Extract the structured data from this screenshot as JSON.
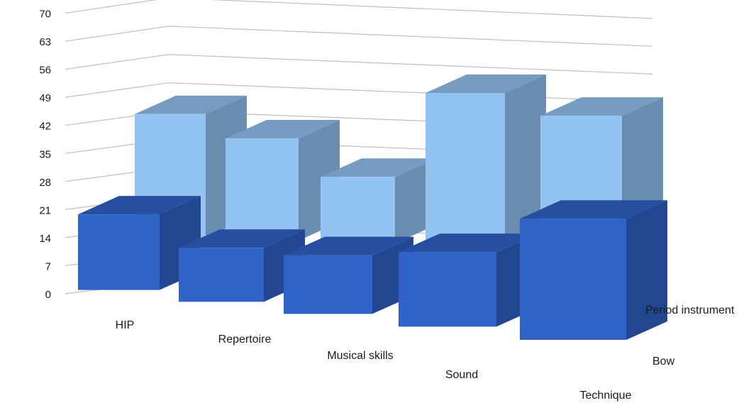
{
  "chart_data": {
    "type": "bar",
    "subtype": "3d-column",
    "categories": [
      "HIP",
      "Repertoire",
      "Musical skills",
      "Sound",
      "Technique"
    ],
    "series": [
      {
        "name": "Period instrument",
        "values": [
          52,
          43,
          28,
          62,
          51
        ],
        "color": "#93c3f2"
      },
      {
        "name": "Bow",
        "values": [
          30,
          21,
          22,
          26,
          37
        ],
        "color": "#2f63c8"
      }
    ],
    "yticks": [
      0,
      7,
      14,
      21,
      28,
      35,
      42,
      49,
      56,
      63,
      70
    ],
    "ylim": [
      0,
      70
    ],
    "grid": true,
    "legend": "right (depth-axis labels)"
  }
}
